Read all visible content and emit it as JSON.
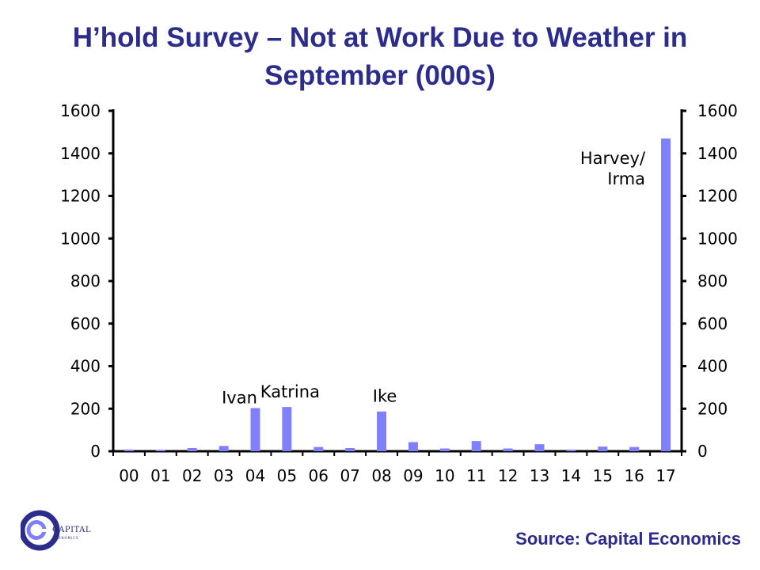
{
  "header": {
    "title_line1": "H’hold Survey – Not at Work Due to Weather in",
    "title_line2": "September (000s)"
  },
  "footer": {
    "source": "Source: Capital Economics",
    "logo_name": "CAPITAL",
    "logo_sub": "ECONOMICS"
  },
  "colors": {
    "bar": "#8080ff",
    "title": "#2c2c8c",
    "axis": "#000000"
  },
  "chart_data": {
    "type": "bar",
    "title": "H’hold Survey – Not at Work Due to Weather in September (000s)",
    "xlabel": "",
    "ylabel": "",
    "categories": [
      "00",
      "01",
      "02",
      "03",
      "04",
      "05",
      "06",
      "07",
      "08",
      "09",
      "10",
      "11",
      "12",
      "13",
      "14",
      "15",
      "16",
      "17"
    ],
    "values": [
      8,
      7,
      15,
      25,
      203,
      208,
      20,
      15,
      187,
      43,
      13,
      48,
      13,
      33,
      8,
      22,
      20,
      1470
    ],
    "ylim": [
      0,
      1600
    ],
    "yticks": [
      0,
      200,
      400,
      600,
      800,
      1000,
      1200,
      1400,
      1600
    ],
    "secondary_axis": true,
    "grid": false,
    "legend": "none",
    "annotations": [
      {
        "lines": [
          "Ivan"
        ],
        "category": "04"
      },
      {
        "lines": [
          "Katrina"
        ],
        "category": "05"
      },
      {
        "lines": [
          "Ike"
        ],
        "category": "08"
      },
      {
        "lines": [
          "Harvey/",
          "Irma"
        ],
        "category": "17"
      }
    ]
  }
}
